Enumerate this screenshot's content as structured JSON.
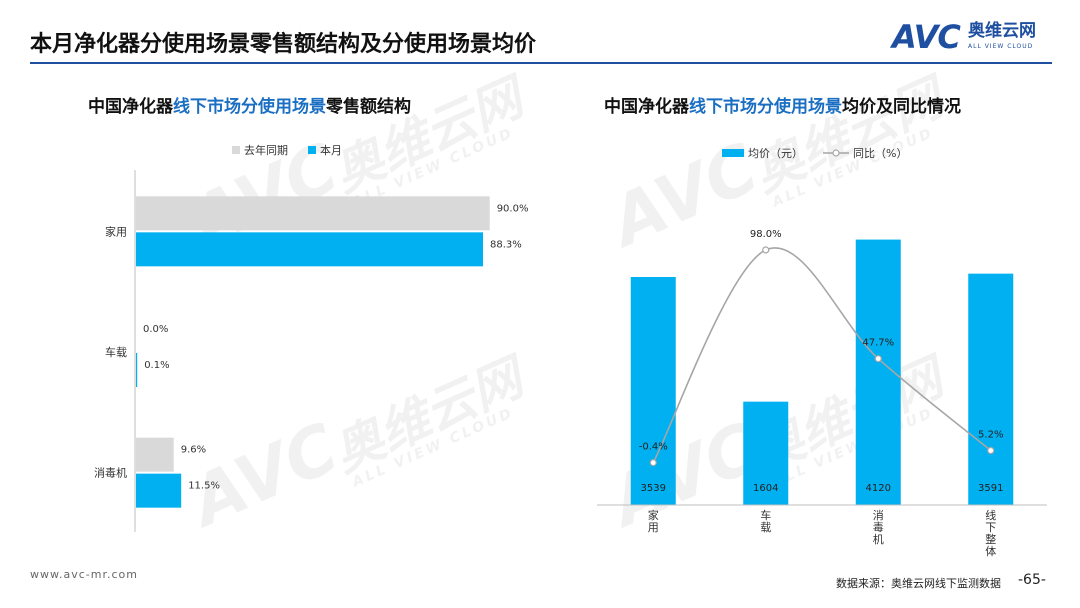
{
  "page": {
    "title": "本月净化器分使用场景零售额结构及分使用场景均价",
    "logo": {
      "word": "AVC",
      "cn": "奥维云网",
      "en": "ALL VIEW CLOUD"
    },
    "watermark": {
      "word": "AVC",
      "cn": "奥维云网",
      "en": "ALL VIEW CLOUD"
    }
  },
  "left_panel": {
    "title_pre": "中国净化器",
    "title_hl": "线下市场分使用场景",
    "title_post": "零售额结构"
  },
  "right_panel": {
    "title_pre": "中国净化器",
    "title_hl": "线下市场分使用场景",
    "title_post": "均价及同比情况"
  },
  "footer": {
    "url": "www.avc-mr.com",
    "source": "数据来源：奥维云网线下监测数据",
    "page": "-65-"
  },
  "chart_data": [
    {
      "type": "bar",
      "orientation": "horizontal",
      "categories": [
        "家用",
        "车载",
        "消毒机"
      ],
      "series": [
        {
          "name": "去年同期",
          "values": [
            90.0,
            0.0,
            9.6
          ],
          "labels": [
            "90.0%",
            "0.0%",
            "9.6%"
          ],
          "color": "#d9d9d9"
        },
        {
          "name": "本月",
          "values": [
            88.3,
            0.1,
            11.5
          ],
          "labels": [
            "88.3%",
            "0.1%",
            "11.5%"
          ],
          "color": "#00b0f0"
        }
      ],
      "xlim": [
        0,
        100
      ],
      "legend": "top-center",
      "grid": false
    },
    {
      "type": "bar",
      "categories": [
        "家用",
        "车载",
        "消毒机",
        "线下整体"
      ],
      "series": [
        {
          "name": "均价（元）",
          "type": "bar",
          "values": [
            3539,
            1604,
            4120,
            3591
          ],
          "labels": [
            "3539",
            "1604",
            "4120",
            "3591"
          ],
          "color": "#00b0f0"
        },
        {
          "name": "同比（%）",
          "type": "line",
          "values": [
            -0.4,
            98.0,
            47.7,
            5.2
          ],
          "labels": [
            "-0.4%",
            "98.0%",
            "47.7%",
            "5.2%"
          ],
          "color": "#a6a6a6"
        }
      ],
      "ylim_bar": [
        0,
        5200
      ],
      "ylim_line": [
        -20,
        135
      ],
      "legend": "top-center",
      "grid": false
    }
  ]
}
